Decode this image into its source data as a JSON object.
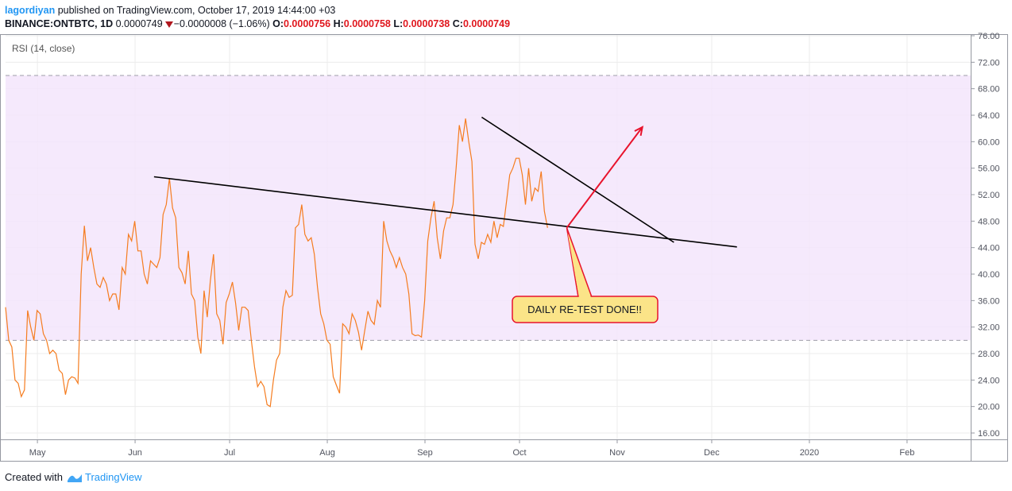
{
  "header": {
    "author": "lagordiyan",
    "published": "published on TradingView.com, October 17, 2019 14:44:00 +03",
    "symbol": "BINANCE:ONTBTC, 1D",
    "last": "0.0000749",
    "change": "−0.0000008 (−1.06%)",
    "o_label": "O:",
    "o_value": "0.0000756",
    "h_label": "H:",
    "h_value": "0.0000758",
    "l_label": "L:",
    "l_value": "0.0000738",
    "c_label": "C:",
    "c_value": "0.0000749"
  },
  "footer": {
    "created_with": "Created with",
    "brand": "TradingView"
  },
  "colors": {
    "rsi_line": "#f57c1f",
    "band_fill": "#f3e5fc",
    "trendline": "#000000",
    "arrow": "#e8132c",
    "callout_fill": "#fbe488",
    "callout_border": "#e8132c",
    "text": "#131722",
    "brand": "#2196f3"
  },
  "chart_data": {
    "type": "line",
    "indicator_label": "RSI (14, close)",
    "y_ticks": [
      "16.00",
      "20.00",
      "24.00",
      "28.00",
      "32.00",
      "36.00",
      "40.00",
      "44.00",
      "48.00",
      "52.00",
      "56.00",
      "60.00",
      "64.00",
      "68.00",
      "72.00",
      "76.00"
    ],
    "ylim": [
      16,
      76
    ],
    "band": [
      30,
      70
    ],
    "grid": true,
    "x_labels": [
      {
        "label": "May",
        "date": "2019-05-01"
      },
      {
        "label": "Jun",
        "date": "2019-06-01"
      },
      {
        "label": "Jul",
        "date": "2019-07-01"
      },
      {
        "label": "Aug",
        "date": "2019-08-01"
      },
      {
        "label": "Sep",
        "date": "2019-09-01"
      },
      {
        "label": "Oct",
        "date": "2019-10-01"
      },
      {
        "label": "Nov",
        "date": "2019-11-01"
      },
      {
        "label": "Dec",
        "date": "2019-12-01"
      },
      {
        "label": "2020",
        "date": "2020-01-01"
      },
      {
        "label": "Feb",
        "date": "2020-02-01"
      }
    ],
    "series": [
      {
        "start_date": "2019-04-19",
        "values": [
          35,
          30,
          29,
          24,
          23.5,
          21.5,
          22.5,
          34.5,
          32,
          30,
          34.5,
          34,
          31,
          30,
          28,
          28.5,
          28,
          25.5,
          25,
          21.8,
          24,
          24.5,
          24.3,
          23.5,
          40,
          47.3,
          42,
          44,
          41,
          38.5,
          38,
          39.5,
          38.5,
          36,
          37,
          37,
          34.6,
          41,
          40,
          46,
          45,
          48,
          43.5,
          43.5,
          40,
          38.5,
          42,
          41.5,
          41,
          42.5,
          49,
          50.5,
          54.5,
          50,
          48.5,
          41,
          40.2,
          38.5,
          43.5,
          37,
          36,
          30.5,
          28,
          37.5,
          33.5,
          39,
          43,
          34,
          33,
          29.4,
          35.7,
          37,
          38.8,
          35.6,
          31.5,
          35,
          35,
          34.5,
          30,
          26,
          23,
          23.8,
          23,
          20.3,
          20,
          24,
          27,
          28,
          35,
          37.5,
          36.5,
          36.8,
          47,
          47.5,
          50.5,
          46,
          45,
          45.5,
          43,
          38,
          34,
          32.5,
          30,
          29.4,
          24.5,
          23.2,
          22,
          32.5,
          32,
          31,
          34,
          33,
          31.2,
          28.5,
          31.5,
          34.4,
          33,
          32.4,
          36,
          35,
          48,
          45,
          43.5,
          42.5,
          41,
          42.5,
          41,
          40,
          37,
          31,
          30.7,
          30.8,
          30.5,
          36,
          45,
          48.5,
          51,
          45.5,
          42.3,
          46.5,
          48.5,
          48.5,
          50.5,
          56,
          62.5,
          60,
          63.5,
          60,
          57,
          44.5,
          42.3,
          44.8,
          44.5,
          46,
          44.8,
          48,
          45.5,
          47.5,
          47.2,
          51,
          55,
          56,
          57.5,
          57.5,
          55,
          50.5,
          56,
          51,
          53,
          52.5,
          55.5,
          49.5,
          47
        ]
      }
    ],
    "annotations": {
      "callout": "DAILY RE-TEST DONE!!"
    },
    "trendlines": [
      {
        "from": [
          "2019-06-07",
          54.7
        ],
        "to": [
          "2019-12-09",
          44.1
        ]
      },
      {
        "from": [
          "2019-09-19",
          63.7
        ],
        "to": [
          "2019-11-19",
          44.8
        ]
      }
    ],
    "arrow": {
      "from": [
        "2019-10-16",
        47.0
      ],
      "to": [
        "2019-11-09",
        62.2
      ]
    }
  }
}
